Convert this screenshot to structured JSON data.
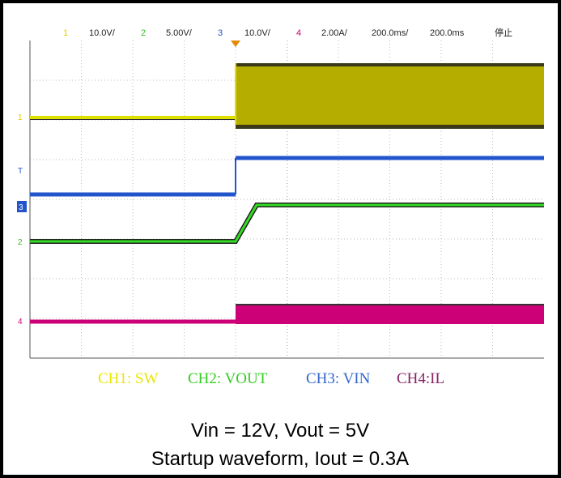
{
  "header": {
    "channels": [
      {
        "number": "1",
        "scale": "10.0V/"
      },
      {
        "number": "2",
        "scale": "5.00V/"
      },
      {
        "number": "3",
        "scale": "10.0V/"
      },
      {
        "number": "4",
        "scale": "2.00A/"
      }
    ],
    "timebase": "200.0ms/",
    "delay": "200.0ms",
    "status": "停止"
  },
  "markers": [
    "1",
    "T",
    "3",
    "2",
    "4"
  ],
  "legend": [
    "CH1: SW",
    "CH2: VOUT",
    "CH3: VIN",
    "CH4:IL"
  ],
  "caption": [
    "Vin = 12V, Vout = 5V",
    "Startup waveform, Iout = 0.3A"
  ]
}
